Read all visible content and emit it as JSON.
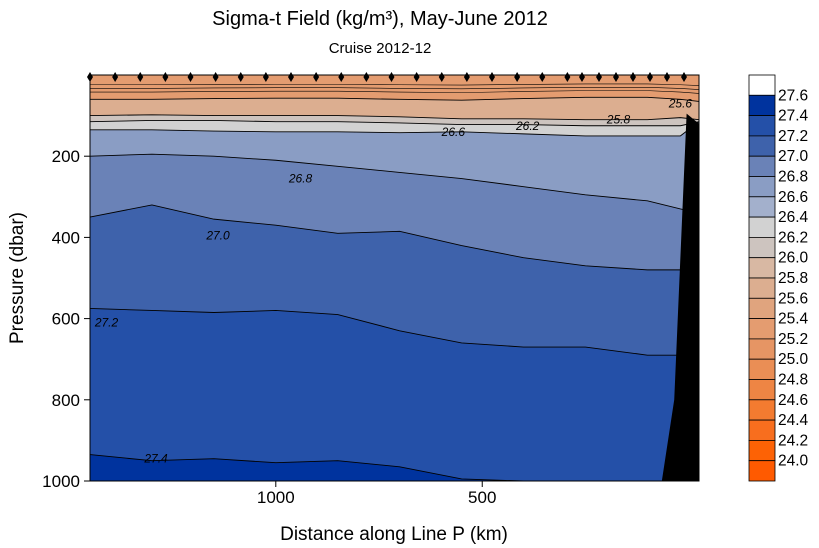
{
  "chart_data": {
    "type": "contour",
    "title": "Sigma-t Field  (kg/m³),  May-June 2012",
    "subtitle": "Cruise 2012-12",
    "xlabel": "Distance along Line P  (km)",
    "ylabel": "Pressure  (dbar)",
    "x_axis": {
      "direction": "decreasing-left-to-right",
      "range": [
        1450,
        -25
      ],
      "ticks": [
        1000,
        500
      ],
      "tick_labels": [
        "1000",
        "500"
      ]
    },
    "y_axis": {
      "direction": "inverted",
      "range": [
        0,
        1000
      ],
      "ticks": [
        200,
        400,
        600,
        800,
        1000
      ],
      "tick_labels": [
        "200",
        "400",
        "600",
        "800",
        "1000"
      ]
    },
    "colorbar": {
      "levels": [
        "27.6",
        "27.4",
        "27.2",
        "27.0",
        "26.8",
        "26.6",
        "26.4",
        "26.2",
        "26.0",
        "25.8",
        "25.6",
        "25.4",
        "25.2",
        "25.0",
        "24.8",
        "24.6",
        "24.4",
        "24.2",
        "24.0"
      ],
      "band_colors": [
        "#ffffff",
        "#00339e",
        "#2450a8",
        "#3e62ab",
        "#6a82b7",
        "#8a9dc4",
        "#a3b0cc",
        "#d2d2d2",
        "#cdc4bf",
        "#d8b8a3",
        "#dcae90",
        "#e0a47e",
        "#e49c70",
        "#e69564",
        "#ea8e55",
        "#ee8544",
        "#f37b30",
        "#f86e1e",
        "#fd6205",
        "#ff5a00"
      ]
    },
    "contour_labels": [
      {
        "value": "25.6",
        "x_km": 20,
        "p_dbar": 70
      },
      {
        "value": "25.8",
        "x_km": 170,
        "p_dbar": 110
      },
      {
        "value": "26.2",
        "x_km": 390,
        "p_dbar": 125
      },
      {
        "value": "26.6",
        "x_km": 570,
        "p_dbar": 140
      },
      {
        "value": "26.8",
        "x_km": 940,
        "p_dbar": 255
      },
      {
        "value": "27.0",
        "x_km": 1140,
        "p_dbar": 395
      },
      {
        "value": "27.2",
        "x_km": 1410,
        "p_dbar": 610
      },
      {
        "value": "27.4",
        "x_km": 1290,
        "p_dbar": 945
      }
    ],
    "isopycnals_p_dbar": {
      "x_km": [
        1450,
        1300,
        1150,
        1000,
        850,
        700,
        550,
        400,
        250,
        100,
        20,
        -25
      ],
      "levels": [
        {
          "value": "25.6",
          "p": [
            60,
            60,
            58,
            57,
            57,
            60,
            62,
            58,
            55,
            55,
            60,
            65
          ]
        },
        {
          "value": "25.8",
          "p": [
            100,
            98,
            100,
            100,
            100,
            103,
            108,
            108,
            110,
            110,
            105,
            110
          ]
        },
        {
          "value": "26.2",
          "p": [
            115,
            112,
            112,
            115,
            115,
            118,
            122,
            122,
            125,
            125,
            125,
            115
          ]
        },
        {
          "value": "26.6",
          "p": [
            135,
            135,
            138,
            140,
            140,
            142,
            140,
            145,
            150,
            150,
            150,
            115
          ]
        },
        {
          "value": "26.8",
          "p": [
            200,
            195,
            200,
            210,
            225,
            240,
            255,
            275,
            295,
            310,
            330,
            340
          ]
        },
        {
          "value": "27.0",
          "p": [
            350,
            320,
            355,
            370,
            390,
            385,
            420,
            450,
            470,
            480,
            480,
            480
          ]
        },
        {
          "value": "27.2",
          "p": [
            575,
            580,
            585,
            580,
            590,
            630,
            660,
            670,
            670,
            690,
            690,
            680
          ]
        },
        {
          "value": "27.4",
          "p": [
            935,
            950,
            945,
            955,
            950,
            965,
            995,
            1000,
            1000,
            1000,
            1000,
            1000
          ]
        }
      ]
    },
    "stations_count": 27,
    "grid": false
  }
}
